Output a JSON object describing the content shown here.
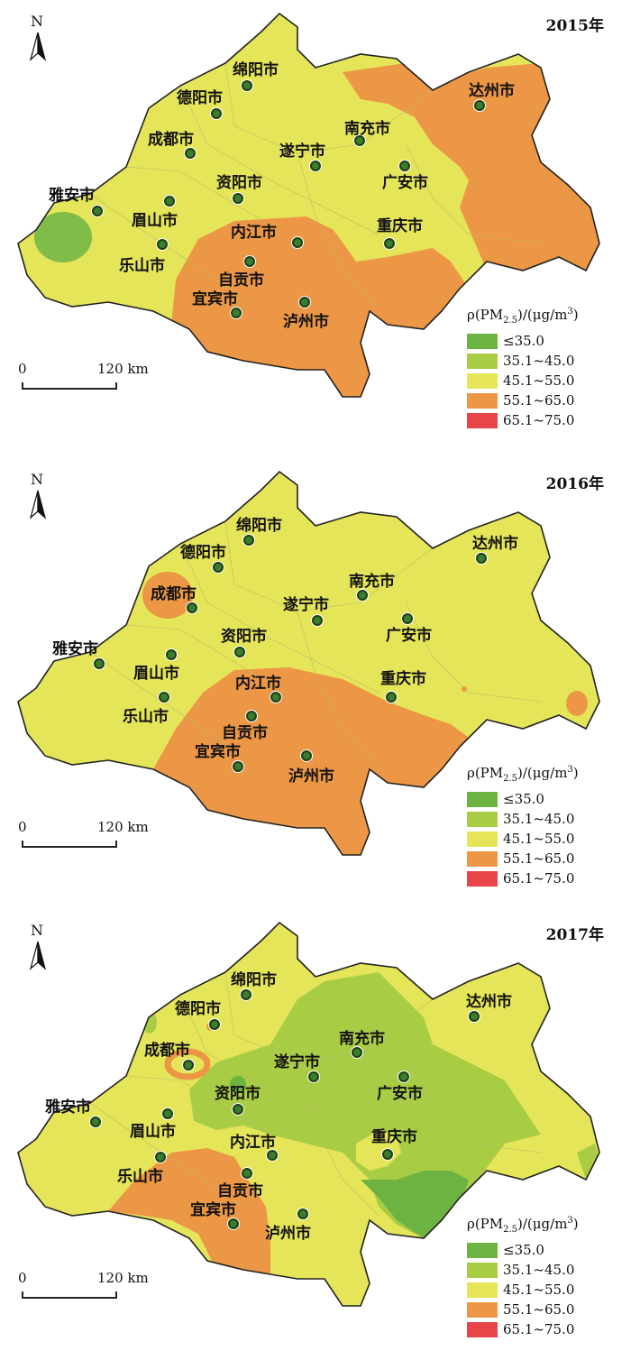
{
  "colors": {
    "c1": "#6db342",
    "c2": "#a9cc45",
    "c3": "#e5e55a",
    "c4": "#ec9745",
    "c5": "#e8454b",
    "border": "#222222",
    "inner_border": "#b8b86a"
  },
  "legend": {
    "title_prefix": "ρ(PM",
    "title_sub": "2.5",
    "title_mid": ")/(μg/m",
    "title_sup": "3",
    "title_suffix": ")",
    "items": [
      {
        "label": "≤35.0",
        "color": "#6db342"
      },
      {
        "label": "35.1~45.0",
        "color": "#a9cc45"
      },
      {
        "label": "45.1~55.0",
        "color": "#e5e55a"
      },
      {
        "label": "55.1~65.0",
        "color": "#ec9745"
      },
      {
        "label": "65.1~75.0",
        "color": "#e8454b"
      }
    ]
  },
  "scale": {
    "zero": "0",
    "distance": "120 km"
  },
  "north": "N",
  "panels": [
    {
      "year": "2015年"
    },
    {
      "year": "2016年"
    },
    {
      "year": "2017年"
    }
  ],
  "cities": [
    {
      "name": "绵阳市"
    },
    {
      "name": "德阳市"
    },
    {
      "name": "成都市"
    },
    {
      "name": "遂宁市"
    },
    {
      "name": "南充市"
    },
    {
      "name": "达州市"
    },
    {
      "name": "资阳市"
    },
    {
      "name": "广安市"
    },
    {
      "name": "雅安市"
    },
    {
      "name": "眉山市"
    },
    {
      "name": "内江市"
    },
    {
      "name": "重庆市"
    },
    {
      "name": "乐山市"
    },
    {
      "name": "自贡市"
    },
    {
      "name": "宜宾市"
    },
    {
      "name": "泸州市"
    }
  ]
}
